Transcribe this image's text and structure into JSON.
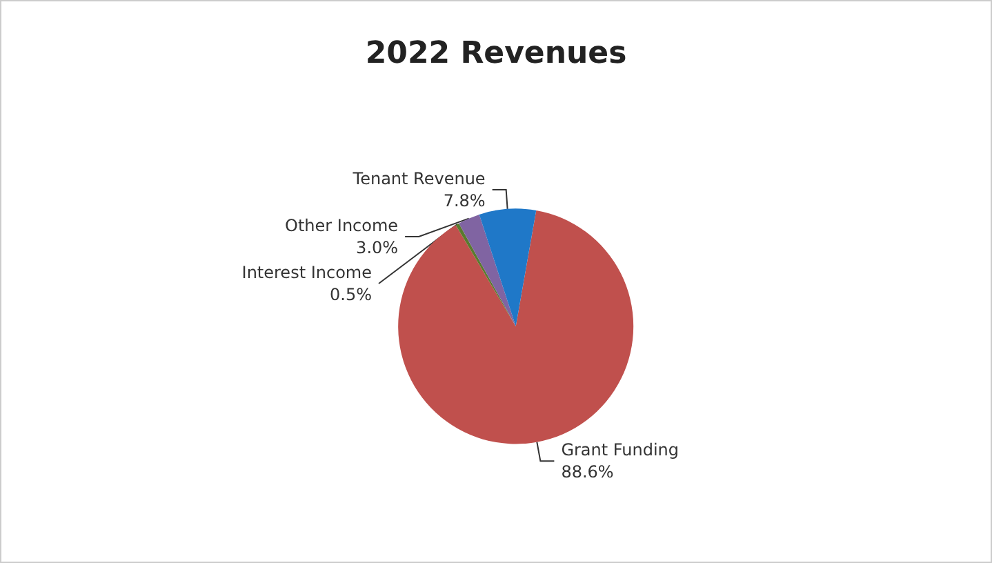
{
  "chart_data": {
    "type": "pie",
    "title": "2022 Revenues",
    "categories": [
      "Grant Funding",
      "Interest Income",
      "Other Income",
      "Tenant Revenue"
    ],
    "values": [
      88.6,
      0.5,
      3.0,
      7.8
    ],
    "value_labels": [
      "88.6%",
      "0.5%",
      "3.0%",
      "7.8%"
    ],
    "colors": [
      "#c0504d",
      "#5a7a2e",
      "#8064a2",
      "#1f78c8"
    ]
  }
}
